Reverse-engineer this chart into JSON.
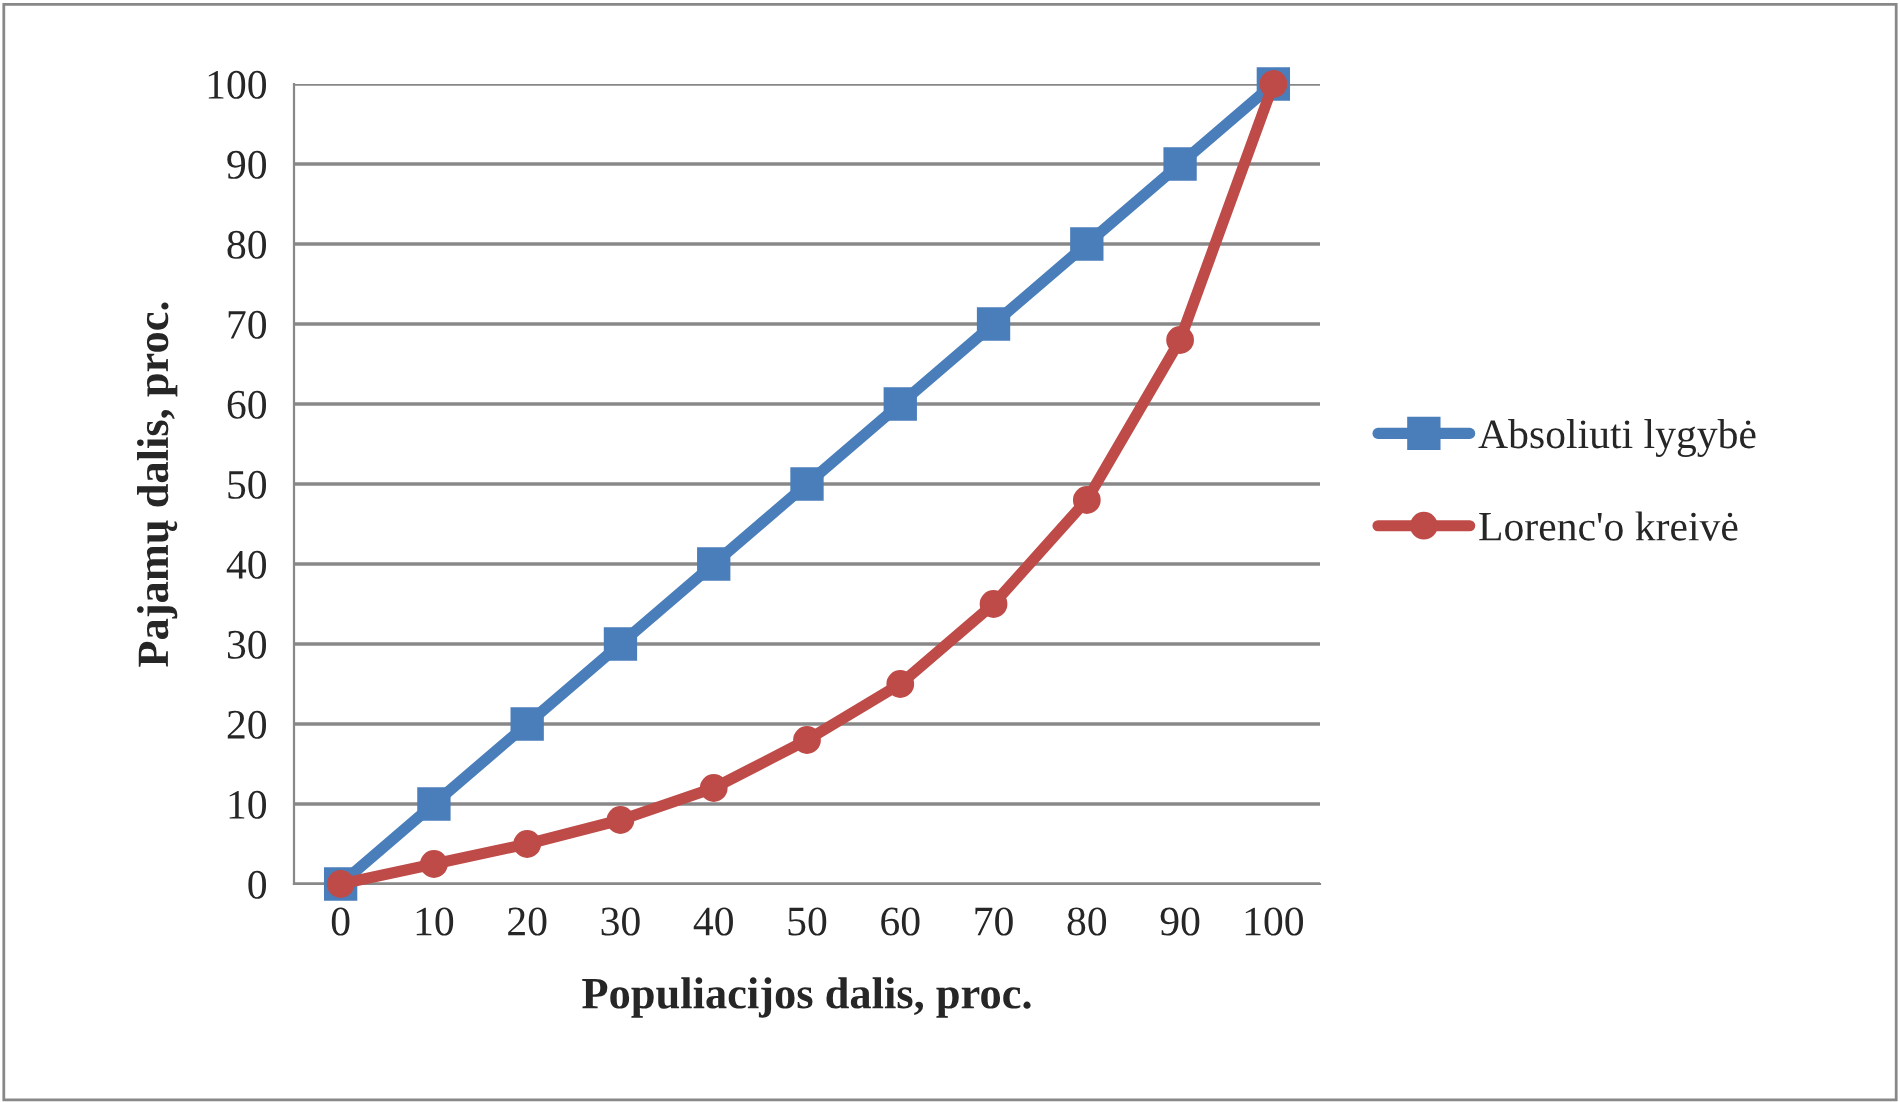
{
  "chart_data": {
    "type": "line",
    "xlabel": "Populiacijos dalis, proc.",
    "ylabel": "Pajamų dalis, proc.",
    "categories": [
      "0",
      "10",
      "20",
      "30",
      "40",
      "50",
      "60",
      "70",
      "80",
      "90",
      "100"
    ],
    "series": [
      {
        "name": "Absoliuti lygybė",
        "color": "#4a7ebb",
        "marker": "square",
        "values": [
          0,
          10,
          20,
          30,
          40,
          50,
          60,
          70,
          80,
          90,
          100
        ]
      },
      {
        "name": "Lorenc'o kreivė",
        "color": "#be4b48",
        "marker": "circle",
        "values": [
          0,
          2.5,
          5,
          8,
          12,
          18,
          25,
          35,
          48,
          68,
          100
        ]
      }
    ],
    "ylim": [
      0,
      100
    ],
    "yticks": [
      0,
      10,
      20,
      30,
      40,
      50,
      60,
      70,
      80,
      90,
      100
    ],
    "grid": "y",
    "legend": "right",
    "line_style": "solid"
  }
}
